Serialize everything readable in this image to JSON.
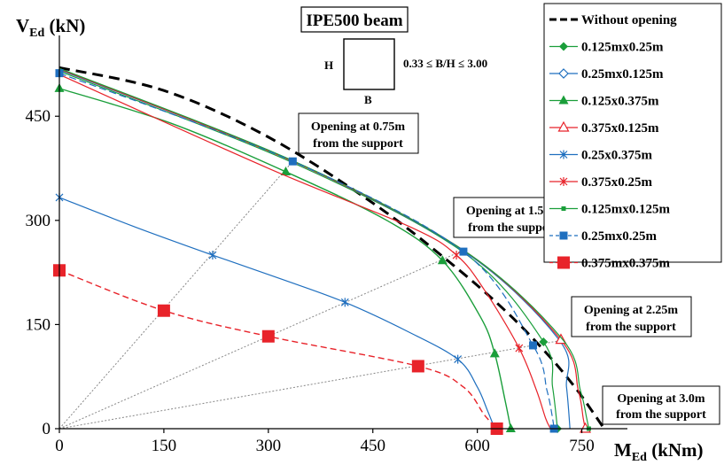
{
  "chart_data": {
    "type": "line",
    "title": "",
    "xlabel": "M",
    "xlabel_sub": "Ed",
    "xlabel_unit": " (kNm)",
    "ylabel": "V",
    "ylabel_sub": "Ed",
    "ylabel_unit": " (kN)",
    "xlim": [
      0,
      790
    ],
    "ylim": [
      0,
      560
    ],
    "x_ticks": [
      0,
      150,
      300,
      450,
      600,
      750
    ],
    "y_ticks": [
      0,
      150,
      300,
      450
    ],
    "grid": false,
    "legend_position": "top-right",
    "inset": {
      "title": "IPE500 beam",
      "h_label": "H",
      "b_label": "B",
      "ratio_label": "0.33 ≤ B/H ≤ 3.00"
    },
    "annotations": [
      {
        "id": "a075",
        "lines": [
          "Opening at 0.75m",
          "from the support"
        ]
      },
      {
        "id": "a150",
        "lines": [
          "Opening at 1.50m",
          "from the support"
        ]
      },
      {
        "id": "a225",
        "lines": [
          "Opening at 2.25m",
          "from the support"
        ]
      },
      {
        "id": "a300",
        "lines": [
          "Opening at 3.0m",
          "from the support"
        ]
      }
    ],
    "reference_lines": [
      {
        "x": [
          0,
          335
        ],
        "y": [
          0,
          385
        ]
      },
      {
        "x": [
          0,
          580
        ],
        "y": [
          0,
          257
        ]
      },
      {
        "x": [
          0,
          720
        ],
        "y": [
          0,
          127
        ]
      }
    ],
    "series": [
      {
        "name": "Without opening",
        "color": "#000000",
        "dash": "12,7",
        "width": 3,
        "marker": "none",
        "x": [
          0,
          150,
          300,
          450,
          560,
          640,
          700,
          740,
          765,
          778,
          782
        ],
        "y": [
          520,
          487,
          420,
          325,
          240,
          170,
          108,
          60,
          25,
          6,
          0
        ]
      },
      {
        "name": "0.125mx0.25m",
        "color": "#1a9e3a",
        "dash": "",
        "width": 1.2,
        "marker": "diamond-filled",
        "x": [
          0,
          335,
          580,
          695,
          708,
          715
        ],
        "y": [
          515,
          383,
          254,
          125,
          60,
          0
        ],
        "marker_idx": [
          3,
          5
        ]
      },
      {
        "name": "0.25mx0.125m",
        "color": "#1f6fbf",
        "dash": "",
        "width": 1.2,
        "marker": "diamond-open",
        "x": [
          0,
          335,
          580,
          718,
          728,
          733
        ],
        "y": [
          517,
          385,
          256,
          127,
          60,
          0
        ],
        "marker_idx": []
      },
      {
        "name": "0.125x0.375m",
        "color": "#1a9e3a",
        "dash": "",
        "width": 1.4,
        "marker": "triangle-filled",
        "x": [
          0,
          160,
          325,
          470,
          550,
          605,
          625,
          640,
          648
        ],
        "y": [
          490,
          440,
          370,
          300,
          242,
          160,
          108,
          40,
          0
        ],
        "marker_idx": [
          0,
          2,
          4,
          6,
          8
        ]
      },
      {
        "name": "0.375x0.125m",
        "color": "#e8232a",
        "dash": "",
        "width": 1.2,
        "marker": "triangle-open",
        "x": [
          0,
          335,
          580,
          720,
          745,
          752,
          755
        ],
        "y": [
          518,
          385,
          257,
          128,
          55,
          15,
          0
        ],
        "marker_idx": [
          3,
          6
        ]
      },
      {
        "name": "0.25x0.375m",
        "color": "#1f6fbf",
        "dash": "",
        "width": 1.2,
        "marker": "star",
        "x": [
          0,
          110,
          220,
          320,
          410,
          500,
          572,
          600,
          615,
          625
        ],
        "y": [
          333,
          290,
          250,
          215,
          182,
          140,
          100,
          60,
          25,
          0
        ],
        "marker_idx": [
          0,
          2,
          4,
          6
        ]
      },
      {
        "name": "0.375x0.25m",
        "color": "#e8232a",
        "dash": "",
        "width": 1.2,
        "marker": "star",
        "x": [
          0,
          300,
          505,
          570,
          610,
          660,
          685,
          698,
          705
        ],
        "y": [
          510,
          375,
          290,
          250,
          200,
          116,
          55,
          15,
          0
        ],
        "marker_idx": [
          3,
          5
        ]
      },
      {
        "name": "0.125mx0.125m",
        "color": "#1a9e3a",
        "dash": "",
        "width": 1.2,
        "marker": "square-small",
        "x": [
          0,
          335,
          580,
          722,
          748,
          757,
          760
        ],
        "y": [
          519,
          386,
          257,
          129,
          55,
          15,
          0
        ],
        "marker_idx": [
          6
        ]
      },
      {
        "name": "0.25mx0.25m",
        "color": "#1f6fbf",
        "dash": "8,4",
        "width": 1.2,
        "marker": "square-filled",
        "x": [
          0,
          335,
          580,
          680,
          700,
          708,
          710
        ],
        "y": [
          512,
          385,
          255,
          120,
          55,
          15,
          0
        ],
        "marker_idx": [
          0,
          1,
          2,
          3,
          6
        ]
      },
      {
        "name": "0.375mx0.375m",
        "color": "#e8232a",
        "dash": "7,4",
        "width": 1.4,
        "marker": "square-big",
        "x": [
          0,
          150,
          300,
          515,
          580,
          610,
          628
        ],
        "y": [
          228,
          170,
          133,
          90,
          60,
          20,
          0
        ],
        "marker_idx": [
          0,
          1,
          2,
          3,
          6
        ]
      }
    ]
  }
}
